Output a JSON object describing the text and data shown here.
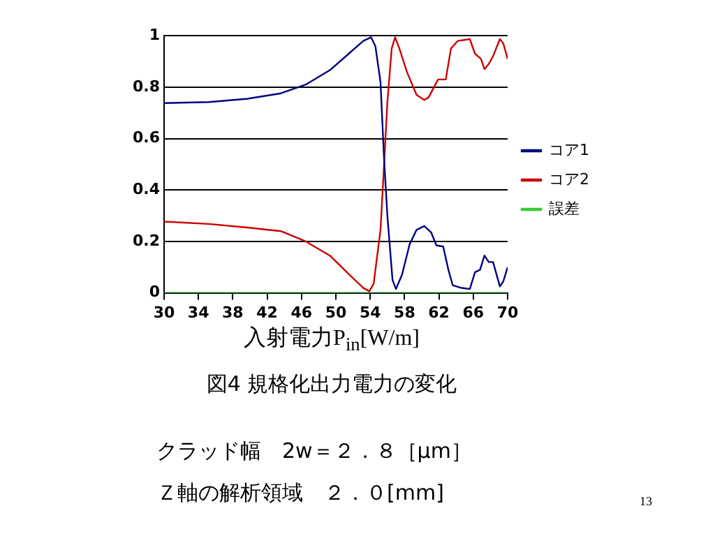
{
  "chart_data": {
    "type": "line",
    "title": "図4 規格化出力電力の変化",
    "xlabel": "入射電力P$_{in}$[W/m]",
    "xlim": [
      30,
      70
    ],
    "xticks": [
      30,
      34,
      38,
      42,
      46,
      50,
      54,
      58,
      62,
      66,
      70
    ],
    "ylim": [
      0,
      1
    ],
    "yticks": [
      0,
      0.2,
      0.4,
      0.6,
      0.8,
      1
    ],
    "grid": "y",
    "legend": "right",
    "marker": "none",
    "series": [
      {
        "name": "コア1",
        "color": "#000080",
        "x": [
          30,
          35.2,
          39.7,
          43.6,
          46.5,
          49.3,
          51.5,
          53.2,
          54.1,
          54.6,
          55.2,
          55.6,
          56.0,
          56.6,
          57.0,
          57.7,
          58.6,
          59.4,
          60.3,
          61.1,
          61.7,
          62.5,
          63.1,
          63.6,
          64.5,
          65.6,
          66.2,
          66.8,
          67.3,
          67.8,
          68.3,
          69.1,
          69.5,
          70
        ],
        "values": [
          0.738,
          0.742,
          0.755,
          0.776,
          0.81,
          0.866,
          0.93,
          0.98,
          0.994,
          0.96,
          0.82,
          0.53,
          0.3,
          0.05,
          0.015,
          0.07,
          0.19,
          0.245,
          0.26,
          0.235,
          0.185,
          0.18,
          0.09,
          0.03,
          0.02,
          0.015,
          0.08,
          0.09,
          0.145,
          0.12,
          0.12,
          0.025,
          0.045,
          0.1
        ]
      },
      {
        "name": "コア2",
        "color": "#cc0000",
        "x": [
          30,
          35.2,
          39.7,
          43.6,
          46.5,
          49.3,
          51.5,
          53.2,
          53.9,
          54.4,
          55.2,
          55.6,
          56.0,
          56.5,
          56.9,
          57.4,
          58.3,
          59.4,
          60.3,
          60.8,
          61.9,
          62.8,
          63.4,
          64.2,
          65.6,
          66.2,
          66.9,
          67.3,
          67.8,
          68.3,
          69.1,
          69.5,
          70
        ],
        "values": [
          0.277,
          0.268,
          0.254,
          0.24,
          0.2,
          0.145,
          0.073,
          0.019,
          0.006,
          0.035,
          0.245,
          0.49,
          0.74,
          0.95,
          0.994,
          0.95,
          0.857,
          0.77,
          0.75,
          0.76,
          0.83,
          0.83,
          0.95,
          0.98,
          0.987,
          0.93,
          0.91,
          0.87,
          0.89,
          0.92,
          0.987,
          0.97,
          0.91
        ]
      },
      {
        "name": "誤差",
        "color": "#33cc33",
        "x": [
          30,
          70
        ],
        "values": [
          0,
          0
        ]
      }
    ],
    "annotations": [
      "クラッド幅　2w＝２．８［μm］",
      "Ｚ軸の解析領域　２．０[mm]",
      "13"
    ]
  }
}
